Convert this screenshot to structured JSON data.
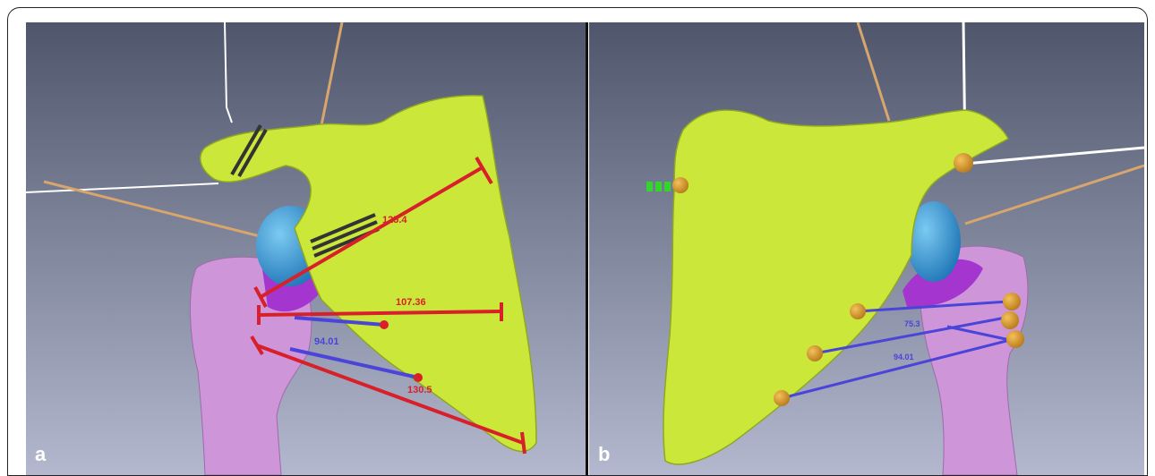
{
  "panels": {
    "a": {
      "label": "a",
      "measurements": [
        "125.4",
        "107.36",
        "94.01",
        "130.5"
      ]
    },
    "b": {
      "label": "b",
      "measurements": [
        "75.3",
        "94.01"
      ]
    }
  },
  "colors": {
    "background_top": "#5e6478",
    "background_bottom": "#a9aec6",
    "scapula": "#cbe83a",
    "humerus": "#cf95d9",
    "glenoid_sphere": "#3aa0dc",
    "humeral_cap": "#a436cf",
    "red_measure": "#d8202a",
    "blue_measure": "#4a44d8",
    "marker": "#d89a2c",
    "rod": "#d8a56c"
  }
}
